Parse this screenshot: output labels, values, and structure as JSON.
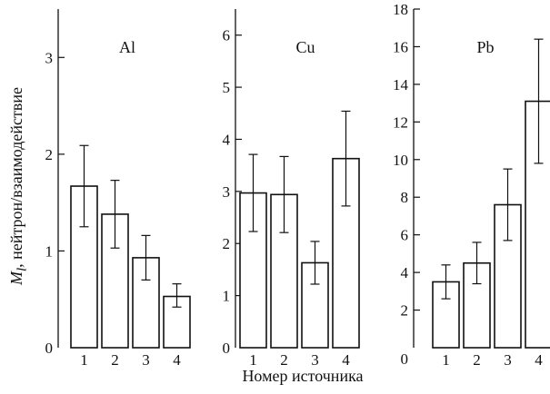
{
  "ylabel_main": "M",
  "ylabel_sub": "l",
  "ylabel_rest": ", нейтрон/взаимодействие",
  "xlabel": "Номер источника",
  "chart_data": [
    {
      "type": "bar",
      "title": "Al",
      "categories": [
        "1",
        "2",
        "3",
        "4"
      ],
      "values": [
        1.67,
        1.38,
        0.93,
        0.53
      ],
      "error_low": [
        1.25,
        1.03,
        0.7,
        0.42
      ],
      "error_high": [
        2.09,
        1.73,
        1.16,
        0.66
      ],
      "ylim": [
        0,
        3.5
      ],
      "yticks": [
        0,
        1,
        2,
        3
      ],
      "ytick_labels": [
        "0",
        "1",
        "2",
        "3"
      ],
      "xlabel": "Номер источника",
      "ylabel": "M_l, нейтрон/взаимодействие"
    },
    {
      "type": "bar",
      "title": "Cu",
      "categories": [
        "1",
        "2",
        "3",
        "4"
      ],
      "values": [
        2.97,
        2.94,
        1.63,
        3.63
      ],
      "error_low": [
        2.23,
        2.21,
        1.22,
        2.72
      ],
      "error_high": [
        3.71,
        3.67,
        2.04,
        4.54
      ],
      "ylim": [
        0,
        6.5
      ],
      "yticks": [
        0,
        1,
        2,
        3,
        4,
        5,
        6
      ],
      "ytick_labels": [
        "0",
        "1",
        "2",
        "3",
        "4",
        "5",
        "6"
      ],
      "xlabel": "Номер источника",
      "ylabel": "M_l, нейтрон/взаимодействие"
    },
    {
      "type": "bar",
      "title": "Pb",
      "categories": [
        "1",
        "2",
        "3",
        "4"
      ],
      "values": [
        3.5,
        4.5,
        7.6,
        13.1
      ],
      "error_low": [
        2.6,
        3.4,
        5.7,
        9.8
      ],
      "error_high": [
        4.4,
        5.6,
        9.5,
        16.4
      ],
      "ylim": [
        0,
        18
      ],
      "yticks": [
        2,
        4,
        6,
        8,
        10,
        12,
        14,
        16,
        18
      ],
      "ytick_labels": [
        "2",
        "4",
        "6",
        "8",
        "10",
        "12",
        "14",
        "16",
        "18"
      ],
      "xlabel": "Номер источника",
      "ylabel": "M_l, нейтрон/взаимодействие"
    }
  ]
}
